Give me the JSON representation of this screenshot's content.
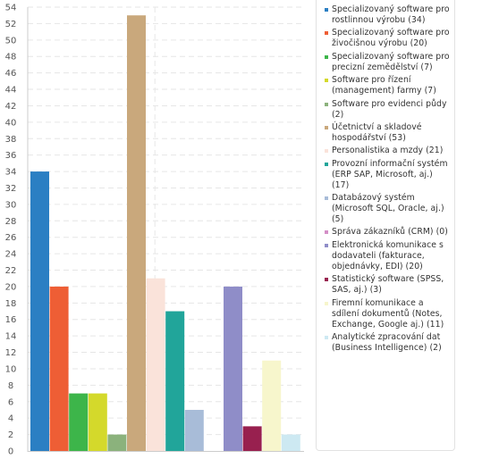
{
  "chart_data": {
    "type": "bar",
    "ylim": [
      0,
      54
    ],
    "ytick_step": 2,
    "grid": true,
    "legend_placement": "right",
    "x_divider_after_index": 7,
    "series": [
      {
        "name": "Specializovaný software pro rostlinnou výrobu (34)",
        "value": 34,
        "color": "#2b7fc3"
      },
      {
        "name": "Specializovaný software pro živočišnou výrobu (20)",
        "value": 20,
        "color": "#ee5e35"
      },
      {
        "name": "Specializovaný software pro precizní zemědělství (7)",
        "value": 7,
        "color": "#3db54a"
      },
      {
        "name": "Software pro řízení (management) farmy (7)",
        "value": 7,
        "color": "#d4d92b"
      },
      {
        "name": "Software pro evidenci půdy (2)",
        "value": 2,
        "color": "#8bb27c"
      },
      {
        "name": "Účetnictví a skladové hospodářství (53)",
        "value": 53,
        "color": "#c9a87c"
      },
      {
        "name": "Personalistika a mzdy (21)",
        "value": 21,
        "color": "#fae3da"
      },
      {
        "name": "Provozní informační systém (ERP SAP, Microsoft, aj.) (17)",
        "value": 17,
        "color": "#21a59a"
      },
      {
        "name": "Databázový systém (Microsoft SQL, Oracle, aj.) (5)",
        "value": 5,
        "color": "#a8bcd8"
      },
      {
        "name": "Správa zákazníků (CRM) (0)",
        "value": 0,
        "color": "#d48fc7"
      },
      {
        "name": "Elektronická komunikace s dodavateli (fakturace, objednávky, EDI) (20)",
        "value": 20,
        "color": "#8f8dc8"
      },
      {
        "name": "Statistický software (SPSS, SAS, aj.) (3)",
        "value": 3,
        "color": "#98204f"
      },
      {
        "name": "Firemní komunikace a sdílení dokumentů (Notes, Exchange, Google aj.) (11)",
        "value": 11,
        "color": "#f7f6cc"
      },
      {
        "name": "Analytické zpracování dat (Business Intelligence) (2)",
        "value": 2,
        "color": "#cde9f2"
      }
    ]
  }
}
